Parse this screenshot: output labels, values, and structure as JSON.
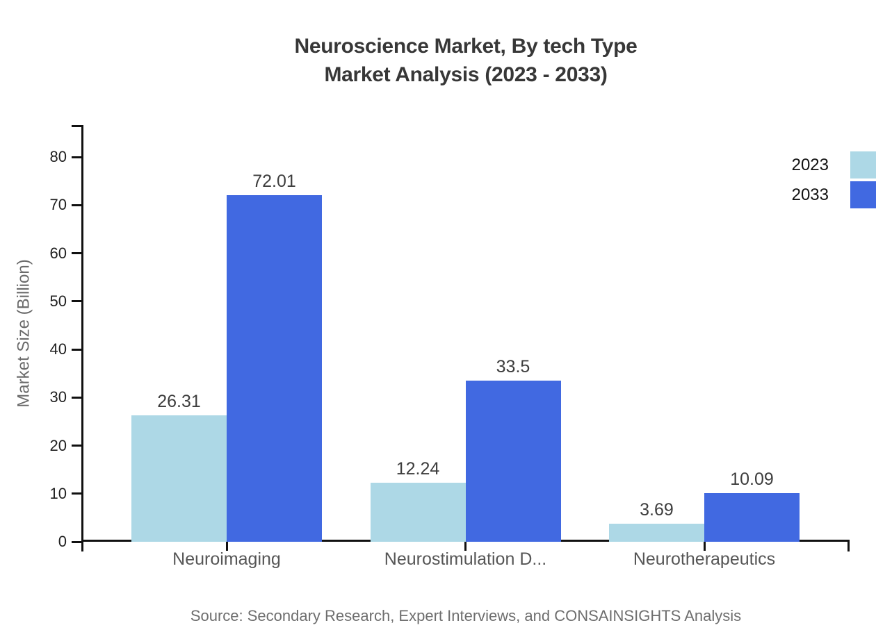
{
  "source": "Source: Secondary Research, Expert Interviews, and CONSAINSIGHTS Analysis",
  "colors": {
    "series_2023": "#ADD8E6",
    "series_2033": "#4169E1",
    "axis": "#111111",
    "title_text": "#373737",
    "category_label": "#565656",
    "muted_text": "#6b6b6b",
    "bar_value_label": "#3d3d3d"
  },
  "chart_data": {
    "type": "bar",
    "title": "Neuroscience Market, By tech Type Market Analysis (2023 - 2033)",
    "title_line1": "Neuroscience Market, By tech Type",
    "title_line2": "Market Analysis (2023 - 2033)",
    "categories": [
      "Neuroimaging",
      "Neurostimulation D...",
      "Neurotherapeutics"
    ],
    "series": [
      {
        "name": "2023",
        "color": "#ADD8E6",
        "values": [
          26.31,
          12.24,
          3.69
        ]
      },
      {
        "name": "2033",
        "color": "#4169E1",
        "values": [
          72.01,
          33.5,
          10.09
        ]
      }
    ],
    "xlabel": "",
    "ylabel": "Market Size (Billion)",
    "y_ticks": [
      0,
      10,
      20,
      30,
      40,
      50,
      60,
      70,
      80
    ],
    "ylim": [
      0,
      86.6
    ],
    "grid": false,
    "legend_position": "top-right",
    "bar_value_labels_shown": true
  }
}
